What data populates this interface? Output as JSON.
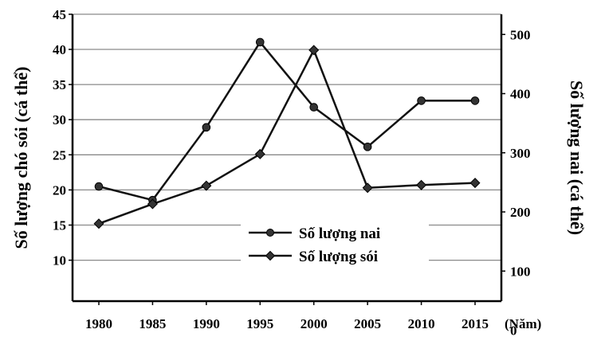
{
  "chart_data": {
    "type": "line",
    "x": [
      1980,
      1985,
      1990,
      1995,
      2000,
      2005,
      2010,
      2015
    ],
    "xlabel": "(Năm)",
    "ylabel_left": "Số lượng chó sói (cá thể)",
    "ylabel_right": "Số lượng nai (cá thể)",
    "ylim_left": [
      5,
      45
    ],
    "ylim_right": [
      0,
      500
    ],
    "yticks_left": [
      10,
      15,
      20,
      25,
      30,
      35,
      40,
      45
    ],
    "yticks_right": [
      0,
      100,
      200,
      300,
      400,
      500
    ],
    "grid": true,
    "legend_position": "center-right",
    "series": [
      {
        "name": "Số lượng nai",
        "axis": "right",
        "marker": "circle",
        "values": [
          243,
          220,
          343,
          487,
          377,
          310,
          388,
          388
        ]
      },
      {
        "name": "Số lượng sói",
        "axis": "left",
        "marker": "diamond",
        "values": [
          15.2,
          18.0,
          20.6,
          25.1,
          39.9,
          20.3,
          20.7,
          21.0
        ]
      }
    ]
  }
}
